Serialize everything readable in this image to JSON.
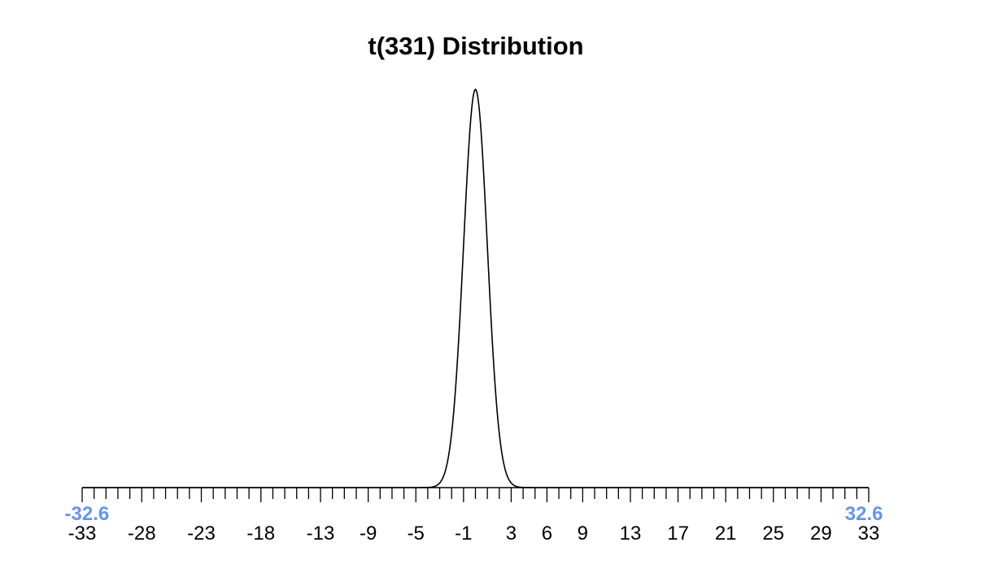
{
  "chart_data": {
    "type": "line",
    "title": "t(331) Distribution",
    "distribution": "t",
    "degrees_of_freedom": 331,
    "xlim": [
      -33,
      33
    ],
    "xlabel": "",
    "ylabel": "",
    "grid": false,
    "tick_labels": [
      "-33",
      "-28",
      "-23",
      "-18",
      "-13",
      "-9",
      "-5",
      "-1",
      "3",
      "6",
      "9",
      "13",
      "17",
      "21",
      "25",
      "29",
      "33"
    ],
    "tick_values": [
      -33,
      -28,
      -23,
      -18,
      -13,
      -9,
      -5,
      -1,
      3,
      6,
      9,
      13,
      17,
      21,
      25,
      29,
      33
    ],
    "minor_tick_step": 1,
    "bound_labels": [
      {
        "text": "-32.6",
        "value": -32.6
      },
      {
        "text": "32.6",
        "value": 32.6
      }
    ],
    "colors": {
      "curve": "#000000",
      "axis": "#000000",
      "bounds": "#6495ED"
    }
  }
}
